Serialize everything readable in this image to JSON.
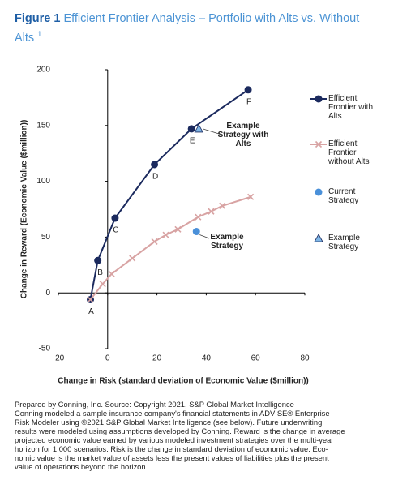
{
  "chart_data": {
    "type": "line",
    "figure_label": "Figure 1",
    "title": "Efficient Frontier Analysis – Portfolio with Alts vs. Without Alts",
    "title_note": "1",
    "x_label": "Change in Risk (standard deviation of Economic Value ($million))",
    "y_label": "Change in Reward (Economic Value ($million))",
    "xlim": [
      -20,
      80
    ],
    "xticks": [
      -20,
      0,
      20,
      40,
      60,
      80
    ],
    "ylim": [
      -50,
      200
    ],
    "yticks": [
      -50,
      0,
      50,
      100,
      150,
      200
    ],
    "grid": false,
    "legend": "right",
    "series": [
      {
        "name": "Efficient Frontier with Alts",
        "color": "#1b2a5e",
        "marker": "circle",
        "line": true,
        "x": [
          -7,
          -4,
          3,
          19,
          34,
          57
        ],
        "values": [
          -6,
          29,
          67,
          115,
          147,
          182
        ],
        "point_labels": [
          "A",
          "B",
          "C",
          "D",
          "E",
          "F"
        ]
      },
      {
        "name": "Efficient Frontier without Alts",
        "color": "#d8a3a3",
        "marker": "x",
        "line": true,
        "x": [
          -7,
          -2,
          1.6,
          10,
          19,
          23.6,
          28.5,
          36.7,
          42,
          46.5,
          58
        ],
        "values": [
          -6,
          8,
          17,
          31,
          46,
          52,
          57,
          68,
          73,
          78,
          86
        ]
      },
      {
        "name": "Current Strategy",
        "color": "#4a90d9",
        "marker": "circle",
        "line": false,
        "x": [
          36
        ],
        "values": [
          55
        ]
      },
      {
        "name": "Example Strategy",
        "color": "#7fb6e6",
        "marker": "triangle",
        "line": false,
        "x": [
          37
        ],
        "values": [
          147
        ]
      }
    ],
    "annotations": [
      "Example Strategy with Alts",
      "Example Strategy"
    ],
    "source_lines": [
      "Prepared by Conning, Inc. Source: Copyright 2021, S&P Global Market Intelligence",
      "Conning modeled a sample insurance company's financial statements in ADVISE® Enterprise",
      "Risk Modeler using ©2021 S&P Global Market Intelligence (see below). Future underwriting",
      "results were modeled using assumptions developed by Conning. Reward is the change in average",
      "projected economic value earned by various modeled investment strategies over the multi-year",
      "horizon for 1,000 scenarios. Risk is the change in standard deviation of economic value.  Eco-",
      "nomic value is the market value of assets less the present values of liabilities plus the present",
      "value of operations beyond the horizon."
    ]
  }
}
